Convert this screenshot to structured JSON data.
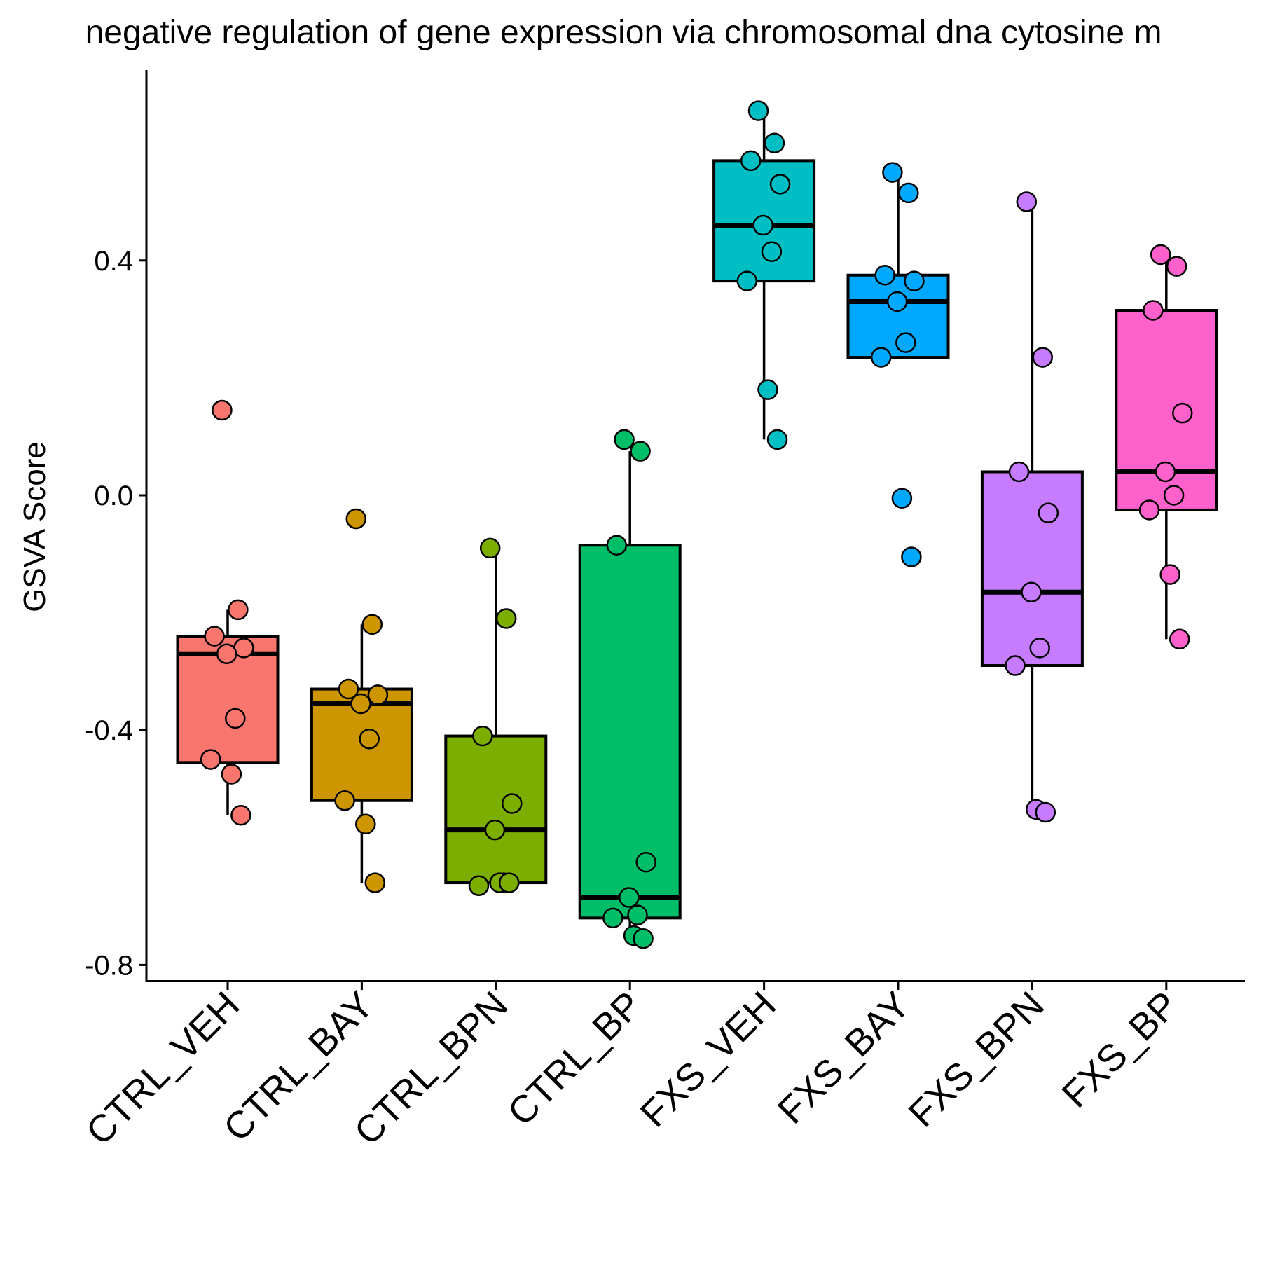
{
  "chart_data": {
    "type": "box",
    "title": "negative regulation of gene expression via chromosomal dna cytosine m",
    "ylabel": "GSVA Score",
    "xlabel": "",
    "ylim": [
      -0.83,
      0.73
    ],
    "yticks": [
      -0.8,
      -0.4,
      0.0,
      0.4
    ],
    "ytick_labels": [
      "-0.8",
      "-0.4",
      "0.0",
      "0.4"
    ],
    "grid": false,
    "legend": "none",
    "categories": [
      "CTRL_VEH",
      "CTRL_BAY",
      "CTRL_BPN",
      "CTRL_BP",
      "FXS_VEH",
      "FXS_BAY",
      "FXS_BPN",
      "FXS_BP"
    ],
    "colors": [
      "#F8766D",
      "#CD9600",
      "#7CAE00",
      "#00BE67",
      "#00BFC4",
      "#00A9FF",
      "#C77CFF",
      "#FF61CC"
    ],
    "boxes": [
      {
        "whisker_low": -0.545,
        "q1": -0.455,
        "median": -0.27,
        "q3": -0.24,
        "whisker_high": -0.195
      },
      {
        "whisker_low": -0.66,
        "q1": -0.52,
        "median": -0.355,
        "q3": -0.33,
        "whisker_high": -0.22
      },
      {
        "whisker_low": -0.66,
        "q1": -0.66,
        "median": -0.57,
        "q3": -0.41,
        "whisker_high": -0.09
      },
      {
        "whisker_low": -0.755,
        "q1": -0.72,
        "median": -0.685,
        "q3": -0.085,
        "whisker_high": 0.075
      },
      {
        "whisker_low": 0.095,
        "q1": 0.365,
        "median": 0.46,
        "q3": 0.57,
        "whisker_high": 0.655
      },
      {
        "whisker_low": 0.235,
        "q1": 0.235,
        "median": 0.33,
        "q3": 0.375,
        "whisker_high": 0.55
      },
      {
        "whisker_low": -0.54,
        "q1": -0.29,
        "median": -0.165,
        "q3": 0.04,
        "whisker_high": 0.5
      },
      {
        "whisker_low": -0.245,
        "q1": -0.025,
        "median": 0.04,
        "q3": 0.315,
        "whisker_high": 0.41
      }
    ],
    "points": [
      [
        0.145,
        -0.195,
        -0.24,
        -0.26,
        -0.27,
        -0.38,
        -0.45,
        -0.475,
        -0.545
      ],
      [
        -0.04,
        -0.22,
        -0.33,
        -0.34,
        -0.355,
        -0.415,
        -0.52,
        -0.56,
        -0.66
      ],
      [
        -0.09,
        -0.21,
        -0.41,
        -0.525,
        -0.57,
        -0.66,
        -0.665,
        -0.66,
        -0.66
      ],
      [
        0.095,
        0.075,
        -0.085,
        -0.625,
        -0.685,
        -0.715,
        -0.72,
        -0.75,
        -0.755
      ],
      [
        0.655,
        0.6,
        0.57,
        0.53,
        0.46,
        0.415,
        0.365,
        0.18,
        0.095
      ],
      [
        0.55,
        0.515,
        0.375,
        0.365,
        0.33,
        0.26,
        0.235,
        -0.005,
        -0.105
      ],
      [
        0.5,
        0.235,
        0.04,
        -0.03,
        -0.165,
        -0.26,
        -0.29,
        -0.535,
        -0.54
      ],
      [
        0.41,
        0.39,
        0.315,
        0.14,
        0.04,
        0.0,
        -0.025,
        -0.135,
        -0.245
      ]
    ]
  }
}
